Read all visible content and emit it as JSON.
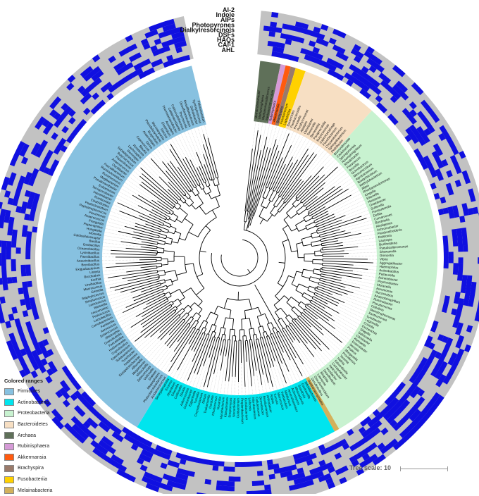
{
  "ring_labels": [
    "AI-2",
    "Indole",
    "AIPs",
    "Photopyrones",
    "Dialkylresorcinols",
    "DSFs",
    "HAQs",
    "CAI-1",
    "AHL"
  ],
  "legend": {
    "title": "Colored ranges",
    "items": [
      {
        "label": "Firmicutes",
        "color": "#87c1e0"
      },
      {
        "label": "Actinobacteria",
        "color": "#00e5ee"
      },
      {
        "label": "Proteobacteria",
        "color": "#c8f2d0"
      },
      {
        "label": "Bacteroidetes",
        "color": "#f7dfc3"
      },
      {
        "label": "Archaea",
        "color": "#5f7059"
      },
      {
        "label": "Rubinisphaera",
        "color": "#d59ad6"
      },
      {
        "label": "Akkermansia",
        "color": "#ff5b0f"
      },
      {
        "label": "Brachyspira",
        "color": "#9a7a6a"
      },
      {
        "label": "Fusobacteriia",
        "color": "#ffd100"
      },
      {
        "label": "Melainabacteria",
        "color": "#d3b15b"
      }
    ]
  },
  "tree_scale": {
    "label": "Tree scale: 10"
  },
  "colors": {
    "heat_on": "#1010e0",
    "heat_off": "#c2c2c2"
  },
  "taxa": {
    "Archaea": [
      "Methanobrevibacter",
      "Methanosphaera",
      "Methanomassiliicoccus",
      "Methanocorpusculum"
    ],
    "Rubinisphaera": [
      "Rubinisphaera"
    ],
    "Akkermansia": [
      "Akkermansia"
    ],
    "Brachyspira": [
      "Brachyspira"
    ],
    "Fusobacteriia": [
      "Fusobacterium",
      "Leptotrichia"
    ],
    "Bacteroidetes": [
      "Bacteroides",
      "Parabacteroides",
      "Prevotella",
      "Porphyromonas",
      "Alistipes",
      "Odoribacter",
      "Tannerella",
      "Barnesiella",
      "Paraprevotella",
      "Butyricimonas",
      "Capnocytophaga",
      "Flavobacterium",
      "Chryseobacterium",
      "Sphingobacterium",
      "Pedobacter"
    ],
    "Proteobacteria": [
      "Brevundimonas",
      "Caulobacter",
      "Sphingomonas",
      "Novosphingobium",
      "Rhodobacter",
      "Paracoccus",
      "Brucella",
      "Ochrobactrum",
      "Mesorhizobium",
      "Agrobacterium",
      "Bradyrhizobium",
      "Methylobacterium",
      "Afipia",
      "Rhodopseudomonas",
      "Kingella",
      "Eikenella",
      "Neisseria",
      "Oxalobacter",
      "Sutterella",
      "Parasutterella",
      "Delftia",
      "Comamonas",
      "Bordetella",
      "Alcaligenes",
      "Achromobacter",
      "Paraburkholderia",
      "Ralstonia",
      "Lautropia",
      "Burkholderia",
      "Pseudoalteromonas",
      "Shewanella",
      "Grimontia",
      "Vibrio",
      "Aggregatibacter",
      "Haemophilus",
      "Actinobacillus",
      "Pasteurella",
      "Acinetobacter",
      "Psychrobacter",
      "Moraxella",
      "Aeromonas",
      "Succinivibrio",
      "Anaerobiospirillum",
      "Ruminobacter",
      "Pseudomonas",
      "Cellvibrio",
      "Stenotrophomonas",
      "Xanthomonas",
      "Lysobacter",
      "Legionella",
      "Coxiella",
      "Escherichia",
      "Shigella",
      "Salmonella",
      "Citrobacter",
      "Klebsiella",
      "Enterobacter",
      "Serratia",
      "Proteus",
      "Morganella",
      "Providencia",
      "Yersinia",
      "Hafnia",
      "Edwardsiella",
      "Campylobacter",
      "Helicobacter",
      "Arcobacter",
      "Desulfovibrio",
      "Bilophila",
      "Lawsonia",
      "Desulfomicrobium",
      "Desulfobulbus"
    ],
    "Melainabacteria": [
      "Gastranaerophilales"
    ],
    "Actinobacteria": [
      "Bifidobacterium",
      "Gardnerella",
      "Scardovia",
      "Alloscardovia",
      "Actinomyces",
      "Arcanobacterium",
      "Mobiluncus",
      "Varibaculum",
      "Micrococcus",
      "Kocuria",
      "Rothia",
      "Arthrobacter",
      "Brevibacterium",
      "Dermabacter",
      "Cellulomonas",
      "Microbacterium",
      "Leifsonia",
      "Curtobacterium",
      "Propionibacterium",
      "Cutibacterium",
      "Nocardioides",
      "Streptomyces",
      "Kitasatospora",
      "Mycobacterium",
      "Nocardia",
      "Rhodococcus",
      "Gordonia",
      "Tsukamurella",
      "Dietzia",
      "Corynebacterium",
      "Turicella",
      "Eggerthella",
      "Gordonibacter",
      "Adlercreutzia",
      "Slackia",
      "Collinsella",
      "Olsenella",
      "Atopobium",
      "Enorma",
      "Senegalimassilia"
    ],
    "Firmicutes": [
      "Acidaminococcus",
      "Phascolarctobacterium",
      "Megasphaera",
      "Dialister",
      "Veillonella",
      "Selenomonas",
      "Mitsuokella",
      "Megamonas",
      "Allisonella",
      "Erysipelotrichaceae",
      "Holdemania",
      "Turicibacter",
      "Solobacterium",
      "Catenibacterium",
      "Coprobacillus",
      "Holdemanella",
      "Faecalitalea",
      "Granulicatella",
      "Abiotrophia",
      "Enterococcus",
      "Aerococcus",
      "Facklamia",
      "Carnobacterium",
      "Lactobacillus",
      "Pediococcus",
      "Leuconostoc",
      "Weissella",
      "Lactococcus",
      "Streptococcus",
      "Staphylococcus",
      "Gemella",
      "Macrococcus",
      "Ureibacillus",
      "Kurthia",
      "Brochothrix",
      "Listeria",
      "Exiguobacterium",
      "Brevibacillus",
      "Aneurinibacillus",
      "Paenibacillus",
      "Lysinibacillus",
      "Oceanobacillus",
      "Geobacillus",
      "Bacillus",
      "Caldicellulosiruptor",
      "Moorella",
      "Hungatella",
      "Peptoniphilus",
      "Finegoldia",
      "Anaerococcus",
      "Parvimonas",
      "Peptostreptococcus",
      "Peptoclostridium",
      "Clostridioides",
      "Romboutsia",
      "Intestinibacter",
      "Terrisporobacter",
      "Eubacterium",
      "Pseudoramibacter",
      "Mogibacterium",
      "Ruminococcus",
      "Ruminiclostridium",
      "Faecalibacterium",
      "Oscillibacter",
      "Anaerotruncus",
      "Flavonifractor",
      "Butyricicoccus",
      "Subdoligranulum",
      "Gemmiger",
      "Lachnospira",
      "Roseburia",
      "Blautia",
      "Coprococcus",
      "Dorea",
      "Anaerostipes",
      "Butyrivibrio",
      "Pseudobutyrivibrio",
      "Marvinbryantia",
      "Sarcina",
      "Clostridium",
      "Acetivibrio",
      "Thermoanaerobacter",
      "Caldanaerobacter",
      "Carboxydothermus",
      "Thermincola",
      "Desulfotomaculum",
      "Desulfitobacterium",
      "Dehalobacter",
      "Syntrophomonas",
      "Pelotomaculum"
    ]
  }
}
